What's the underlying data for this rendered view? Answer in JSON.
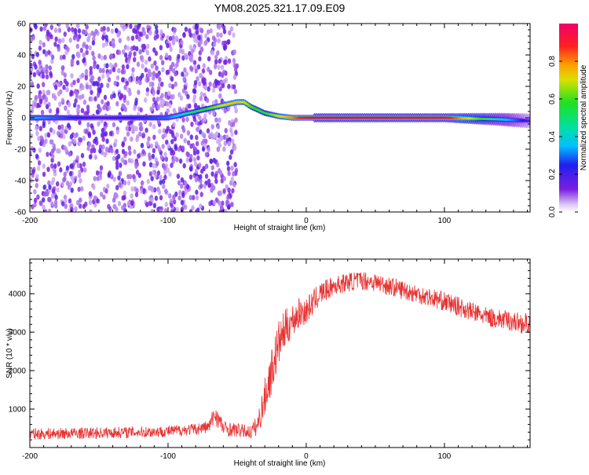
{
  "title": "YM08.2025.321.17.09.E09",
  "chart_data": [
    {
      "type": "heatmap",
      "name": "spectrogram",
      "xlabel": "Height of straight line (km)",
      "ylabel": "Frequency (Hz)",
      "xlim": [
        -200,
        162
      ],
      "ylim": [
        -60,
        60
      ],
      "xticks": [
        -200,
        -100,
        0,
        100
      ],
      "yticks": [
        -60,
        -40,
        -20,
        0,
        20,
        40,
        60
      ],
      "signal_track": {
        "x": [
          -200,
          -150,
          -100,
          -90,
          -80,
          -70,
          -60,
          -50,
          -45,
          -40,
          -30,
          -20,
          -10,
          0,
          5,
          50,
          100,
          140,
          162
        ],
        "freq": [
          0,
          0,
          0,
          2,
          4,
          6,
          8,
          10,
          10,
          7,
          3,
          1,
          0,
          0,
          0,
          0,
          0,
          -1,
          -2
        ],
        "amplitude": [
          0.35,
          0.2,
          0.3,
          0.4,
          0.5,
          0.6,
          0.7,
          0.75,
          0.7,
          0.6,
          0.55,
          0.7,
          0.8,
          0.95,
          1.0,
          0.98,
          0.95,
          0.4,
          0.2
        ]
      },
      "noise_region_x": [
        -200,
        -50
      ],
      "colorbar": {
        "label": "Normalized spectral amplitude",
        "range": [
          0,
          1
        ],
        "ticks": [
          0.0,
          0.2,
          0.4,
          0.6,
          0.8
        ],
        "tick_labels": [
          "0.0",
          "0.2",
          "0.4",
          "0.6",
          "0.8"
        ]
      }
    },
    {
      "type": "line",
      "name": "snr",
      "xlabel": "Height of straight line (km)",
      "ylabel": "SNR (10 * v/v)",
      "xlim": [
        -200,
        162
      ],
      "ylim": [
        0,
        4900
      ],
      "xticks": [
        -200,
        -100,
        0,
        100
      ],
      "yticks": [
        1000,
        2000,
        3000,
        4000
      ],
      "series": [
        {
          "name": "SNR",
          "color": "#e83232",
          "x": [
            -200,
            -150,
            -100,
            -80,
            -70,
            -66,
            -60,
            -50,
            -40,
            -35,
            -30,
            -25,
            -20,
            -15,
            -10,
            -5,
            0,
            10,
            20,
            30,
            40,
            50,
            70,
            100,
            130,
            162
          ],
          "y": [
            350,
            380,
            420,
            480,
            550,
            900,
            500,
            450,
            400,
            600,
            1300,
            2000,
            2700,
            3100,
            3300,
            3500,
            3550,
            4000,
            4200,
            4300,
            4350,
            4300,
            4100,
            3800,
            3400,
            3200
          ],
          "spread": [
            150,
            150,
            150,
            150,
            180,
            300,
            200,
            180,
            180,
            300,
            500,
            600,
            600,
            500,
            450,
            400,
            350,
            300,
            250,
            250,
            250,
            250,
            250,
            250,
            250,
            280
          ]
        }
      ]
    }
  ]
}
